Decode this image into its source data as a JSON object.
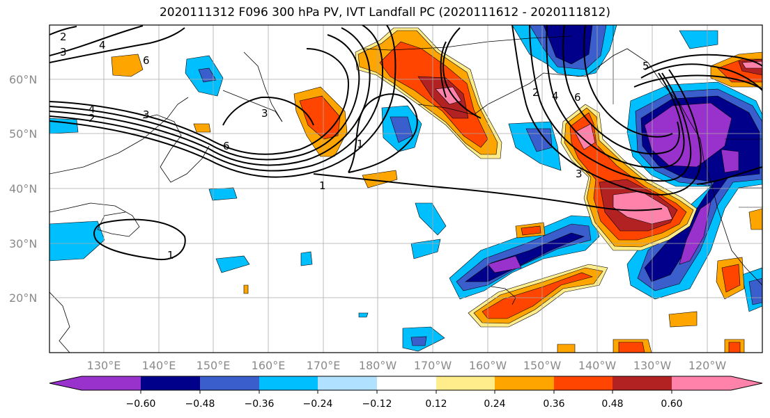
{
  "title": "2020111312 F096 300 hPa PV, IVT Landfall PC (2020111612 - 2020111812)",
  "map": {
    "lat_labels": [
      "60°N",
      "50°N",
      "40°N",
      "30°N",
      "20°N"
    ],
    "lon_labels": [
      "130°E",
      "140°E",
      "150°E",
      "160°E",
      "170°E",
      "180°W",
      "170°W",
      "160°W",
      "150°W",
      "140°W",
      "130°W",
      "120°W"
    ],
    "contour_labels": [
      "2",
      "3",
      "4",
      "6",
      "6",
      "2",
      "3",
      "4",
      "6",
      "5",
      "3",
      "4",
      "1",
      "1",
      "1",
      "2",
      "3"
    ]
  },
  "colorbar": {
    "colors": [
      "#9932cc",
      "#00008b",
      "#3a5fcd",
      "#00bfff",
      "#b0e2ff",
      "#ffffff",
      "#ffec8b",
      "#ffa500",
      "#ff4500",
      "#b22222",
      "#ff82ab"
    ],
    "tick_labels": [
      "−0.60",
      "−0.48",
      "−0.36",
      "−0.24",
      "−0.12",
      "0.12",
      "0.24",
      "0.36",
      "0.48",
      "0.60"
    ]
  }
}
